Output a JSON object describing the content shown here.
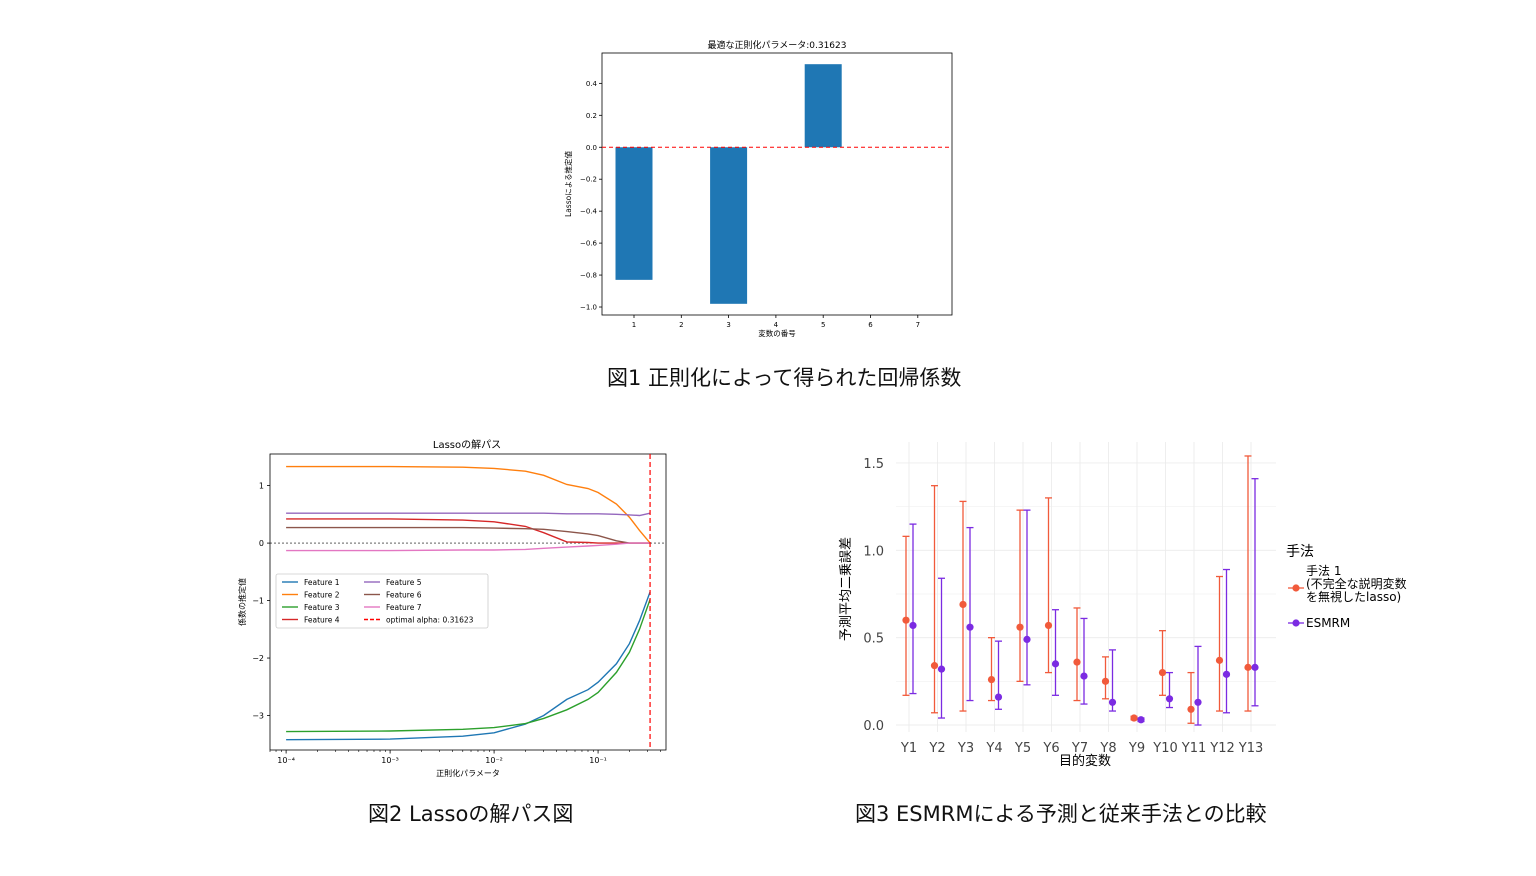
{
  "figures": [
    {
      "caption": "図1 正則化によって得られた回帰係数",
      "chart_data": {
        "type": "bar",
        "title": "最適な正則化パラメータ:0.31623",
        "xlabel": "変数の番号",
        "ylabel": "Lassoによる推定値",
        "categories": [
          "1",
          "2",
          "3",
          "4",
          "5",
          "6",
          "7"
        ],
        "values": [
          -0.83,
          0,
          -0.98,
          0,
          0.52,
          0,
          0
        ],
        "ylim": [
          -1.05,
          0.59
        ],
        "yticks": [
          0.4,
          0.2,
          0.0,
          -0.2,
          -0.4,
          -0.6,
          -0.8,
          -1.0
        ],
        "ytick_labels": [
          "0.4",
          "0.2",
          "0.0",
          "−0.2",
          "−0.4",
          "−0.6",
          "−0.8",
          "−1.0"
        ],
        "bar_color": "#1f77b4",
        "reference_line": {
          "y": 0,
          "color": "#ff0000",
          "style": "dashed"
        },
        "grid": false
      }
    },
    {
      "caption": "図2 Lassoの解パス図",
      "chart_data": {
        "type": "line",
        "title": "Lassoの解パス",
        "xlabel": "正則化パラメータ",
        "ylabel": "係数の推定値",
        "x_scale": "log",
        "xlim": [
          7e-05,
          0.45
        ],
        "ylim": [
          -3.6,
          1.55
        ],
        "xticks": [
          0.0001,
          0.001,
          0.01,
          0.1
        ],
        "xtick_labels": [
          "10⁻⁴",
          "10⁻³",
          "10⁻²",
          "10⁻¹"
        ],
        "yticks": [
          1,
          0,
          -1,
          -2,
          -3
        ],
        "ytick_labels": [
          "1",
          "0",
          "−1",
          "−2",
          "−3"
        ],
        "x": [
          0.0001,
          0.001,
          0.005,
          0.01,
          0.02,
          0.03,
          0.05,
          0.08,
          0.1,
          0.15,
          0.2,
          0.25,
          0.31623
        ],
        "series": [
          {
            "name": "Feature 1",
            "color": "#1f77b4",
            "values": [
              -3.42,
              -3.41,
              -3.36,
              -3.3,
              -3.15,
              -3.0,
              -2.72,
              -2.55,
              -2.42,
              -2.1,
              -1.75,
              -1.35,
              -0.85
            ]
          },
          {
            "name": "Feature 2",
            "color": "#ff7f0e",
            "values": [
              1.33,
              1.33,
              1.32,
              1.3,
              1.25,
              1.18,
              1.02,
              0.95,
              0.88,
              0.68,
              0.45,
              0.22,
              0.0
            ]
          },
          {
            "name": "Feature 3",
            "color": "#2ca02c",
            "values": [
              -3.28,
              -3.27,
              -3.24,
              -3.21,
              -3.14,
              -3.05,
              -2.9,
              -2.72,
              -2.6,
              -2.25,
              -1.9,
              -1.5,
              -0.98
            ]
          },
          {
            "name": "Feature 4",
            "color": "#d62728",
            "values": [
              0.42,
              0.42,
              0.4,
              0.37,
              0.29,
              0.18,
              0.02,
              0.01,
              0.0,
              0.0,
              0.0,
              0.0,
              0.0
            ]
          },
          {
            "name": "Feature 5",
            "color": "#9467bd",
            "values": [
              0.52,
              0.52,
              0.52,
              0.52,
              0.52,
              0.52,
              0.51,
              0.51,
              0.51,
              0.5,
              0.49,
              0.48,
              0.52
            ]
          },
          {
            "name": "Feature 6",
            "color": "#8c564b",
            "values": [
              0.27,
              0.27,
              0.27,
              0.26,
              0.25,
              0.24,
              0.2,
              0.16,
              0.13,
              0.04,
              0.0,
              0.0,
              0.0
            ]
          },
          {
            "name": "Feature 7",
            "color": "#e377c2",
            "values": [
              -0.13,
              -0.13,
              -0.12,
              -0.12,
              -0.11,
              -0.09,
              -0.07,
              -0.05,
              -0.04,
              -0.02,
              0.0,
              0.0,
              0.0
            ]
          }
        ],
        "reference_line": {
          "name": "optimal alpha: 0.31623",
          "x": 0.31623,
          "color": "#ff0000",
          "style": "dashed"
        },
        "zero_line": {
          "y": 0,
          "color": "#000000",
          "style": "dashed"
        },
        "legend": "center-left",
        "grid": false
      }
    },
    {
      "caption": "図3 ESMRMによる予測と従来手法との比較",
      "chart_data": {
        "type": "scatter",
        "xlabel": "目的変数",
        "ylabel": "予測平均二乗誤差",
        "categories": [
          "Y1",
          "Y2",
          "Y3",
          "Y4",
          "Y5",
          "Y6",
          "Y7",
          "Y8",
          "Y9",
          "Y10",
          "Y11",
          "Y12",
          "Y13"
        ],
        "ylim": [
          -0.04,
          1.62
        ],
        "yticks": [
          0.0,
          0.5,
          1.0,
          1.5
        ],
        "ytick_labels": [
          "0.0",
          "0.5",
          "1.0",
          "1.5"
        ],
        "legend_title": "手法",
        "legend": "right",
        "grid": true,
        "series": [
          {
            "name": "手法 1\n(不完全な説明変数\nを無視したlasso)",
            "name_lines": [
              "手法 1",
              "(不完全な説明変数",
              "を無視したlasso)"
            ],
            "color": "#f15a3b",
            "values": [
              0.6,
              0.34,
              0.69,
              0.26,
              0.56,
              0.57,
              0.36,
              0.25,
              0.04,
              0.3,
              0.09,
              0.37,
              0.33
            ],
            "upper": [
              1.08,
              1.37,
              1.28,
              0.5,
              1.23,
              1.3,
              0.67,
              0.39,
              0.05,
              0.54,
              0.3,
              0.85,
              1.54
            ],
            "lower": [
              0.17,
              0.07,
              0.08,
              0.14,
              0.25,
              0.3,
              0.14,
              0.15,
              0.03,
              0.17,
              0.01,
              0.08,
              0.08
            ]
          },
          {
            "name": "ESMRM",
            "name_lines": [
              "ESMRM"
            ],
            "color": "#7b2be2",
            "values": [
              0.57,
              0.32,
              0.56,
              0.16,
              0.49,
              0.35,
              0.28,
              0.13,
              0.03,
              0.15,
              0.13,
              0.29,
              0.33
            ],
            "upper": [
              1.15,
              0.84,
              1.13,
              0.48,
              1.23,
              0.66,
              0.61,
              0.43,
              0.04,
              0.3,
              0.45,
              0.89,
              1.41
            ],
            "lower": [
              0.18,
              0.04,
              0.14,
              0.09,
              0.23,
              0.17,
              0.12,
              0.08,
              0.02,
              0.1,
              0.0,
              0.07,
              0.11
            ]
          }
        ]
      }
    }
  ]
}
